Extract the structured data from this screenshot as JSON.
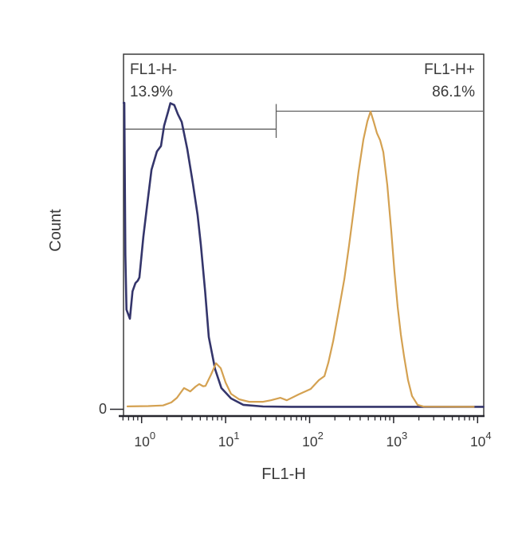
{
  "chart_data": {
    "type": "line",
    "subtype": "flow-cytometry-histogram-overlay",
    "title": "",
    "xlabel": "FL1-H",
    "ylabel": "Count",
    "x_scale": "log",
    "x_tick_base": "10",
    "x_tick_exponents": [
      0,
      1,
      2,
      3,
      4
    ],
    "y_tick_labels": [
      "0"
    ],
    "x_range": [
      0.6,
      11800
    ],
    "y_units": "percent_of_max_displayed_count",
    "grid": false,
    "legend": "none",
    "frame_color": "#3b3b3b",
    "axis_color": "#26262d",
    "gate_color": "#5f5f5f",
    "text_color": "#3a3a3a",
    "series": [
      {
        "name": "FL1-H negative population curve",
        "color": "#34356b",
        "points": [
          [
            0.612,
            99.7
          ],
          [
            0.622,
            99.7
          ],
          [
            0.64,
            50
          ],
          [
            0.66,
            32
          ],
          [
            0.725,
            29
          ],
          [
            0.78,
            38
          ],
          [
            0.845,
            40.7
          ],
          [
            0.9,
            41.5
          ],
          [
            0.94,
            42.5
          ],
          [
            1.05,
            55.9
          ],
          [
            1.17,
            66.8
          ],
          [
            1.31,
            77.8
          ],
          [
            1.52,
            83.8
          ],
          [
            1.7,
            85.6
          ],
          [
            1.85,
            92.2
          ],
          [
            2.07,
            96.9
          ],
          [
            2.2,
            99.6
          ],
          [
            2.45,
            99.0
          ],
          [
            2.7,
            96.0
          ],
          [
            3.0,
            93.5
          ],
          [
            3.5,
            84.6
          ],
          [
            4.07,
            73.4
          ],
          [
            4.64,
            62.9
          ],
          [
            5.07,
            53.3
          ],
          [
            5.7,
            38
          ],
          [
            6.31,
            23.0
          ],
          [
            7.5,
            12.5
          ],
          [
            8.9,
            6.3
          ],
          [
            11.6,
            2.9
          ],
          [
            16.2,
            0.8
          ],
          [
            28,
            0.25
          ],
          [
            60,
            0.15
          ],
          [
            11700,
            0.15
          ]
        ]
      },
      {
        "name": "FL1-H positive population curve",
        "color": "#d4a151",
        "points": [
          [
            0.68,
            0.3
          ],
          [
            1.2,
            0.4
          ],
          [
            1.8,
            0.6
          ],
          [
            2.26,
            1.6
          ],
          [
            2.63,
            3.1
          ],
          [
            3.2,
            6.3
          ],
          [
            3.8,
            5.2
          ],
          [
            4.4,
            6.8
          ],
          [
            4.85,
            7.6
          ],
          [
            5.4,
            6.9
          ],
          [
            5.77,
            7.0
          ],
          [
            6.7,
            10.7
          ],
          [
            7.7,
            14.4
          ],
          [
            8.75,
            12.8
          ],
          [
            10,
            8.1
          ],
          [
            11.6,
            4.4
          ],
          [
            14.5,
            2.6
          ],
          [
            19,
            1.8
          ],
          [
            28,
            1.8
          ],
          [
            34.6,
            2.3
          ],
          [
            45,
            3.1
          ],
          [
            53.5,
            2.3
          ],
          [
            74,
            4.2
          ],
          [
            103,
            6.0
          ],
          [
            129,
            8.9
          ],
          [
            150,
            10.2
          ],
          [
            167,
            14.6
          ],
          [
            191,
            21.7
          ],
          [
            222,
            31.6
          ],
          [
            259,
            42.0
          ],
          [
            295,
            53.0
          ],
          [
            336,
            65.0
          ],
          [
            383,
            77.3
          ],
          [
            437,
            87.7
          ],
          [
            487,
            93.7
          ],
          [
            532,
            96.9
          ],
          [
            581,
            93.5
          ],
          [
            634,
            89.8
          ],
          [
            692,
            87.5
          ],
          [
            755,
            83.6
          ],
          [
            841,
            72.8
          ],
          [
            938,
            57.7
          ],
          [
            1023,
            44.6
          ],
          [
            1117,
            32.9
          ],
          [
            1219,
            23.8
          ],
          [
            1330,
            16.7
          ],
          [
            1484,
            8.9
          ],
          [
            1656,
            3.7
          ],
          [
            1928,
            0.8
          ],
          [
            2296,
            0.2
          ],
          [
            9000,
            0.15
          ]
        ]
      }
    ],
    "gates": [
      {
        "label": "FL1-H-",
        "percent": "13.9%",
        "x_from": 0.62,
        "x_to": 40,
        "line_height_pct": 91.1
      },
      {
        "label": "FL1-H+",
        "percent": "86.1%",
        "x_from": 40,
        "x_to": 11800,
        "line_height_pct": 97.0
      }
    ]
  }
}
